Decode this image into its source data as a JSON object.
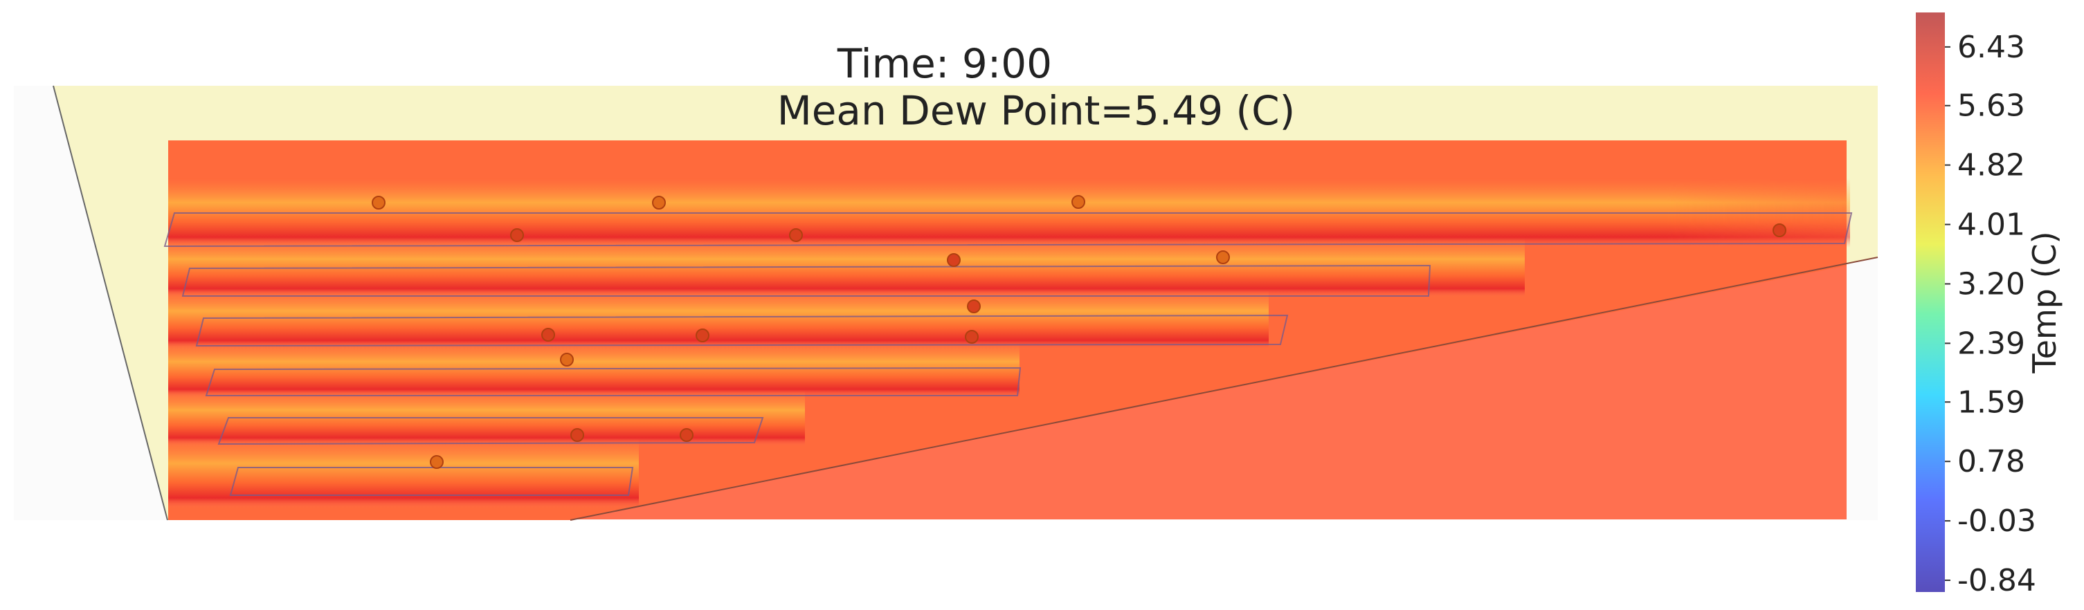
{
  "title": "Time: 9:00",
  "subtitle": "Mean Dew Point=5.49 (C)",
  "colorbar": {
    "label": "Temp (C)",
    "ticks": [
      "6.43",
      "5.63",
      "4.82",
      "4.01",
      "3.20",
      "2.39",
      "1.59",
      "0.78",
      "-0.03",
      "-0.84"
    ],
    "range": [
      -1.0,
      6.9
    ],
    "colormap": [
      "#3b2fb0",
      "#3f5dff",
      "#1fd2ff",
      "#5ff0a0",
      "#e8f040",
      "#ffb030",
      "#ff5030",
      "#b83a3a"
    ]
  },
  "colors": {
    "background_field": "#ff7050",
    "ambient_fill": "#f8f5c8",
    "row_warm": "#ffaa44",
    "row_hot": "#ee2b2b"
  },
  "chart_data": {
    "type": "heatmap",
    "title": "Time: 9:00",
    "subtitle": "Mean Dew Point=5.49 (C)",
    "colorbar_label": "Temp (C)",
    "colorbar_ticks": [
      6.43,
      5.63,
      4.82,
      4.01,
      3.2,
      2.39,
      1.59,
      0.78,
      -0.03,
      -0.84
    ],
    "mean_dew_point": 5.49,
    "grid": false
  }
}
